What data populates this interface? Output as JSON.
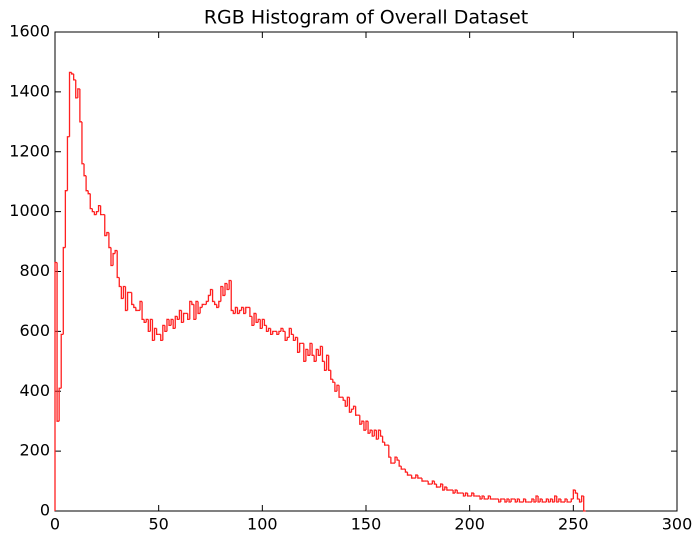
{
  "chart_data": {
    "type": "histogram",
    "title": "RGB Histogram of Overall Dataset",
    "color": "#ff2020",
    "bins": [
      0,
      1,
      2,
      3,
      4,
      5,
      6,
      7,
      8,
      9,
      10,
      11,
      12,
      13,
      14,
      15,
      16,
      17,
      18,
      19,
      20,
      21,
      22,
      23,
      24,
      25,
      26,
      27,
      28,
      29,
      30,
      31,
      32,
      33,
      34,
      35,
      36,
      37,
      38,
      39,
      40,
      41,
      42,
      43,
      44,
      45,
      46,
      47,
      48,
      49,
      50,
      51,
      52,
      53,
      54,
      55,
      56,
      57,
      58,
      59,
      60,
      61,
      62,
      63,
      64,
      65,
      66,
      67,
      68,
      69,
      70,
      71,
      72,
      73,
      74,
      75,
      76,
      77,
      78,
      79,
      80,
      81,
      82,
      83,
      84,
      85,
      86,
      87,
      88,
      89,
      90,
      91,
      92,
      93,
      94,
      95,
      96,
      97,
      98,
      99,
      100,
      101,
      102,
      103,
      104,
      105,
      106,
      107,
      108,
      109,
      110,
      111,
      112,
      113,
      114,
      115,
      116,
      117,
      118,
      119,
      120,
      121,
      122,
      123,
      124,
      125,
      126,
      127,
      128,
      129,
      130,
      131,
      132,
      133,
      134,
      135,
      136,
      137,
      138,
      139,
      140,
      141,
      142,
      143,
      144,
      145,
      146,
      147,
      148,
      149,
      150,
      151,
      152,
      153,
      154,
      155,
      156,
      157,
      158,
      159,
      160,
      161,
      162,
      163,
      164,
      165,
      166,
      167,
      168,
      169,
      170,
      171,
      172,
      173,
      174,
      175,
      176,
      177,
      178,
      179,
      180,
      181,
      182,
      183,
      184,
      185,
      186,
      187,
      188,
      189,
      190,
      191,
      192,
      193,
      194,
      195,
      196,
      197,
      198,
      199,
      200,
      201,
      202,
      203,
      204,
      205,
      206,
      207,
      208,
      209,
      210,
      211,
      212,
      213,
      214,
      215,
      216,
      217,
      218,
      219,
      220,
      221,
      222,
      223,
      224,
      225,
      226,
      227,
      228,
      229,
      230,
      231,
      232,
      233,
      234,
      235,
      236,
      237,
      238,
      239,
      240,
      241,
      242,
      243,
      244,
      245,
      246,
      247,
      248,
      249,
      250,
      251,
      252,
      253,
      254,
      255,
      256
    ],
    "values": [
      830,
      300,
      410,
      590,
      880,
      1070,
      1250,
      1465,
      1460,
      1440,
      1380,
      1410,
      1300,
      1160,
      1120,
      1070,
      1060,
      1010,
      1000,
      990,
      1000,
      1020,
      990,
      990,
      920,
      930,
      880,
      820,
      860,
      870,
      780,
      750,
      710,
      750,
      670,
      730,
      730,
      690,
      680,
      670,
      670,
      700,
      640,
      630,
      640,
      600,
      640,
      570,
      610,
      590,
      590,
      570,
      620,
      600,
      640,
      620,
      640,
      610,
      650,
      640,
      670,
      630,
      660,
      660,
      640,
      700,
      690,
      640,
      700,
      660,
      680,
      690,
      690,
      700,
      720,
      740,
      700,
      690,
      680,
      700,
      750,
      720,
      760,
      740,
      770,
      670,
      660,
      680,
      660,
      670,
      680,
      660,
      680,
      680,
      650,
      620,
      660,
      630,
      640,
      610,
      640,
      620,
      600,
      610,
      590,
      600,
      600,
      590,
      600,
      610,
      600,
      570,
      580,
      610,
      590,
      570,
      580,
      530,
      560,
      560,
      500,
      540,
      520,
      560,
      520,
      500,
      540,
      520,
      550,
      500,
      470,
      520,
      470,
      440,
      430,
      400,
      420,
      380,
      380,
      370,
      350,
      380,
      330,
      340,
      350,
      320,
      320,
      290,
      300,
      270,
      300,
      260,
      270,
      250,
      270,
      240,
      270,
      250,
      230,
      220,
      220,
      180,
      160,
      160,
      180,
      170,
      150,
      140,
      140,
      130,
      120,
      120,
      110,
      110,
      120,
      110,
      110,
      100,
      100,
      100,
      90,
      90,
      100,
      90,
      80,
      80,
      90,
      70,
      80,
      70,
      70,
      70,
      60,
      70,
      60,
      60,
      60,
      50,
      60,
      50,
      50,
      60,
      50,
      50,
      50,
      40,
      50,
      40,
      40,
      50,
      40,
      40,
      40,
      40,
      30,
      40,
      40,
      30,
      40,
      30,
      40,
      40,
      30,
      40,
      30,
      30,
      40,
      30,
      30,
      30,
      40,
      30,
      50,
      30,
      40,
      30,
      30,
      40,
      30,
      40,
      30,
      50,
      30,
      40,
      30,
      30,
      40,
      30,
      30,
      40,
      70,
      60,
      40,
      30,
      50,
      0
    ],
    "xlim": [
      0,
      300
    ],
    "ylim": [
      0,
      1600
    ],
    "xticks": [
      0,
      50,
      100,
      150,
      200,
      250,
      300
    ],
    "yticks": [
      0,
      200,
      400,
      600,
      800,
      1000,
      1200,
      1400,
      1600
    ]
  }
}
